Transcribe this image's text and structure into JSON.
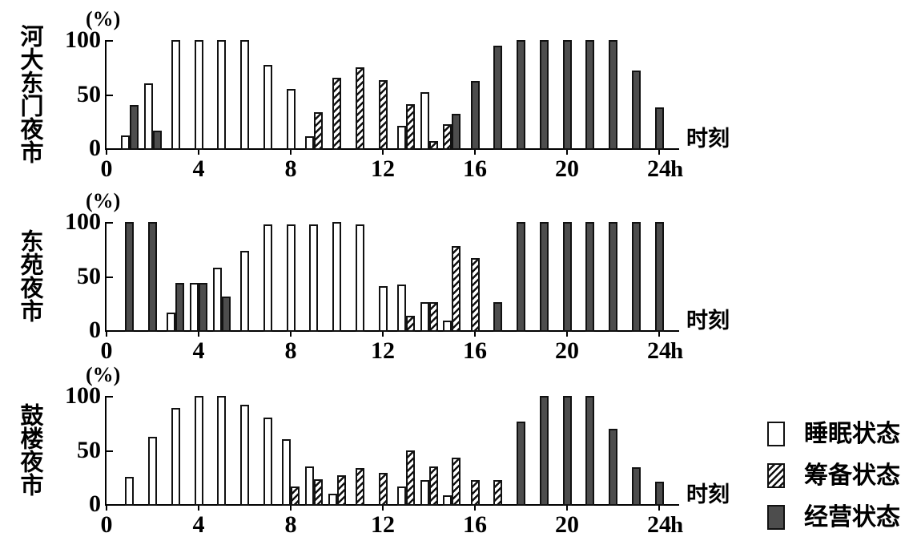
{
  "figure": {
    "background": "#ffffff",
    "outline_color": "#111111",
    "operating_fill": "#4d4d4d",
    "y_axis_unit_label": "(%)",
    "x_axis_title": "时刻",
    "x_unit": "h"
  },
  "legend": {
    "position": "bottom-right",
    "items": [
      {
        "label": "睡眠状态",
        "state": "sleep",
        "swatch": "white-open-box"
      },
      {
        "label": "筹备状态",
        "state": "prep",
        "swatch": "diagonal-hatch-box"
      },
      {
        "label": "经营状态",
        "state": "oper",
        "swatch": "dark-gray-box"
      }
    ]
  },
  "chart_data": [
    {
      "type": "bar",
      "title": "河大东门夜市",
      "ylabel": "(%)",
      "xlabel": "时刻",
      "x_unit": "h",
      "ylim": [
        0,
        100
      ],
      "yticks": [
        0,
        50,
        100
      ],
      "xticks": [
        0,
        4,
        8,
        12,
        16,
        20,
        24
      ],
      "hours": [
        1,
        2,
        3,
        4,
        5,
        6,
        7,
        8,
        9,
        10,
        11,
        12,
        13,
        14,
        15,
        16,
        17,
        18,
        19,
        20,
        21,
        22,
        23,
        24
      ],
      "grid": false,
      "series": [
        {
          "name": "睡眠状态",
          "state": "sleep",
          "values": [
            12,
            60,
            100,
            100,
            100,
            100,
            77,
            55,
            11,
            null,
            null,
            null,
            21,
            52,
            null,
            null,
            null,
            null,
            null,
            null,
            null,
            null,
            null,
            null
          ]
        },
        {
          "name": "筹备状态",
          "state": "prep",
          "values": [
            null,
            null,
            null,
            null,
            null,
            null,
            null,
            null,
            33,
            65,
            75,
            63,
            41,
            7,
            22,
            null,
            null,
            null,
            null,
            null,
            null,
            null,
            null,
            null
          ]
        },
        {
          "name": "经营状态",
          "state": "oper",
          "values": [
            40,
            16,
            null,
            null,
            null,
            null,
            null,
            null,
            null,
            null,
            null,
            null,
            null,
            null,
            32,
            62,
            95,
            100,
            100,
            100,
            100,
            100,
            72,
            38
          ]
        }
      ]
    },
    {
      "type": "bar",
      "title": "东苑夜市",
      "ylabel": "(%)",
      "xlabel": "时刻",
      "x_unit": "h",
      "ylim": [
        0,
        100
      ],
      "yticks": [
        0,
        50,
        100
      ],
      "xticks": [
        0,
        4,
        8,
        12,
        16,
        20,
        24
      ],
      "hours": [
        1,
        2,
        3,
        4,
        5,
        6,
        7,
        8,
        9,
        10,
        11,
        12,
        13,
        14,
        15,
        16,
        17,
        18,
        19,
        20,
        21,
        22,
        23,
        24
      ],
      "grid": false,
      "series": [
        {
          "name": "睡眠状态",
          "state": "sleep",
          "values": [
            null,
            null,
            16,
            44,
            58,
            73,
            98,
            98,
            98,
            100,
            98,
            41,
            42,
            26,
            9,
            null,
            null,
            null,
            null,
            null,
            null,
            null,
            null,
            null
          ]
        },
        {
          "name": "筹备状态",
          "state": "prep",
          "values": [
            null,
            null,
            null,
            null,
            null,
            null,
            null,
            null,
            null,
            null,
            null,
            null,
            13,
            26,
            78,
            67,
            null,
            null,
            null,
            null,
            null,
            null,
            null,
            null
          ]
        },
        {
          "name": "经营状态",
          "state": "oper",
          "values": [
            100,
            100,
            44,
            44,
            31,
            null,
            null,
            null,
            null,
            null,
            null,
            null,
            null,
            null,
            null,
            null,
            26,
            100,
            100,
            100,
            100,
            100,
            100,
            100
          ]
        }
      ]
    },
    {
      "type": "bar",
      "title": "鼓楼夜市",
      "ylabel": "(%)",
      "xlabel": "时刻",
      "x_unit": "h",
      "ylim": [
        0,
        100
      ],
      "yticks": [
        0,
        50,
        100
      ],
      "xticks": [
        0,
        4,
        8,
        12,
        16,
        20,
        24
      ],
      "hours": [
        1,
        2,
        3,
        4,
        5,
        6,
        7,
        8,
        9,
        10,
        11,
        12,
        13,
        14,
        15,
        16,
        17,
        18,
        19,
        20,
        21,
        22,
        23,
        24
      ],
      "grid": false,
      "series": [
        {
          "name": "睡眠状态",
          "state": "sleep",
          "values": [
            25,
            62,
            89,
            100,
            100,
            92,
            80,
            60,
            35,
            10,
            null,
            null,
            16,
            22,
            8,
            null,
            null,
            null,
            null,
            null,
            null,
            null,
            null,
            null
          ]
        },
        {
          "name": "筹备状态",
          "state": "prep",
          "values": [
            null,
            null,
            null,
            null,
            null,
            null,
            null,
            16,
            23,
            27,
            33,
            29,
            50,
            35,
            43,
            22,
            22,
            null,
            null,
            null,
            null,
            null,
            null,
            null
          ]
        },
        {
          "name": "经营状态",
          "state": "oper",
          "values": [
            null,
            null,
            null,
            null,
            null,
            null,
            null,
            null,
            null,
            null,
            null,
            null,
            null,
            null,
            null,
            null,
            null,
            76,
            100,
            100,
            100,
            70,
            34,
            21
          ]
        }
      ]
    }
  ]
}
